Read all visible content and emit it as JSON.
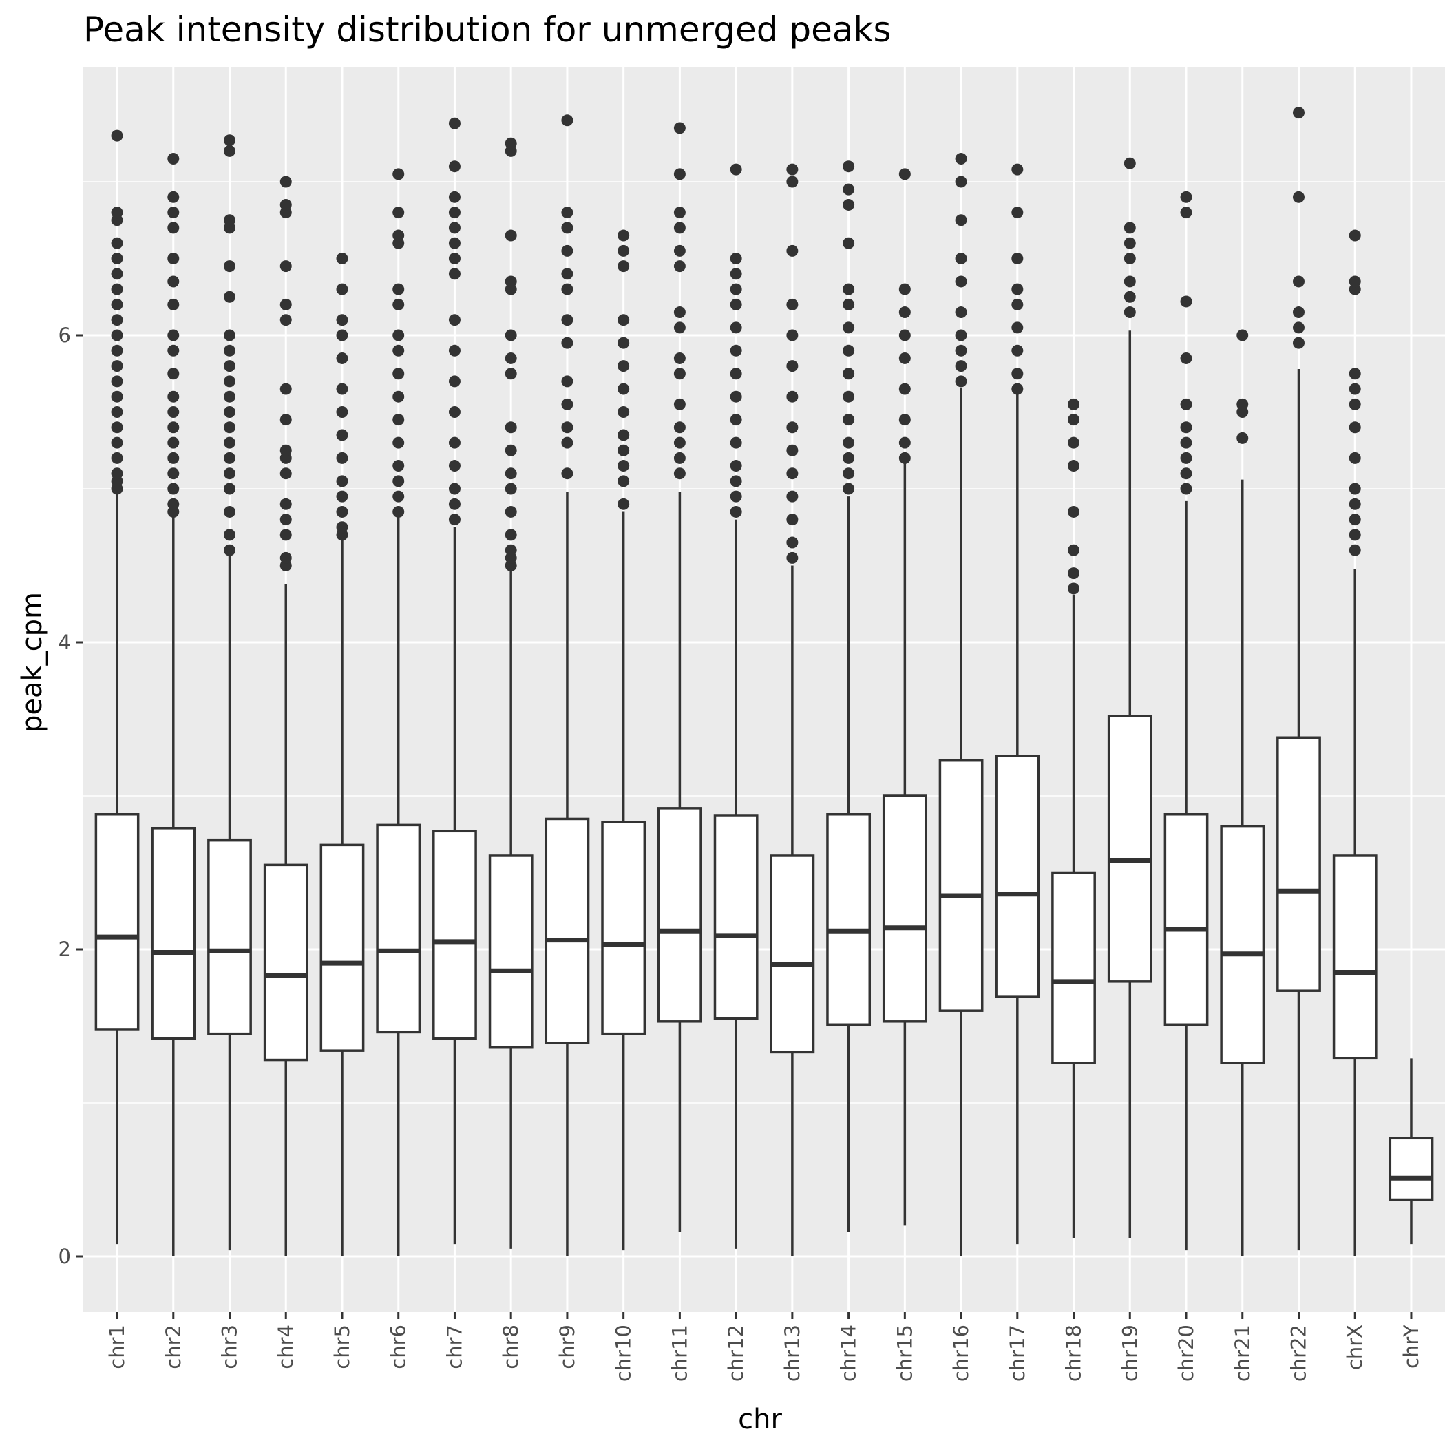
{
  "chart_data": {
    "type": "boxplot",
    "title": "Peak intensity distribution for unmerged peaks",
    "xlabel": "chr",
    "ylabel": "peak_cpm",
    "ylim": [
      -0.37,
      7.6
    ],
    "yticks": [
      0,
      2,
      4,
      6
    ],
    "grid": true,
    "categories": [
      "chr1",
      "chr2",
      "chr3",
      "chr4",
      "chr5",
      "chr6",
      "chr7",
      "chr8",
      "chr9",
      "chr10",
      "chr11",
      "chr12",
      "chr13",
      "chr14",
      "chr15",
      "chr16",
      "chr17",
      "chr18",
      "chr19",
      "chr20",
      "chr21",
      "chr22",
      "chrX",
      "chrY"
    ],
    "boxes": [
      {
        "min": 0.08,
        "q1": 1.48,
        "median": 2.08,
        "q3": 2.88,
        "max": 4.98,
        "outliers": [
          5.0,
          5.05,
          5.1,
          5.2,
          5.3,
          5.4,
          5.5,
          5.6,
          5.7,
          5.8,
          5.9,
          6.0,
          6.1,
          6.2,
          6.3,
          6.4,
          6.5,
          6.6,
          6.75,
          6.8,
          7.3
        ]
      },
      {
        "min": 0.0,
        "q1": 1.42,
        "median": 1.98,
        "q3": 2.79,
        "max": 4.82,
        "outliers": [
          4.85,
          4.9,
          5.0,
          5.1,
          5.2,
          5.3,
          5.4,
          5.5,
          5.6,
          5.75,
          5.9,
          6.0,
          6.2,
          6.35,
          6.5,
          6.7,
          6.8,
          6.9,
          7.15
        ]
      },
      {
        "min": 0.04,
        "q1": 1.45,
        "median": 1.99,
        "q3": 2.71,
        "max": 4.6,
        "outliers": [
          4.6,
          4.7,
          4.85,
          5.0,
          5.1,
          5.2,
          5.3,
          5.4,
          5.5,
          5.6,
          5.7,
          5.8,
          5.9,
          6.0,
          6.25,
          6.45,
          6.7,
          6.75,
          7.2,
          7.27
        ]
      },
      {
        "min": 0.0,
        "q1": 1.28,
        "median": 1.83,
        "q3": 2.55,
        "max": 4.38,
        "outliers": [
          4.5,
          4.55,
          4.7,
          4.8,
          4.9,
          5.1,
          5.2,
          5.25,
          5.45,
          5.65,
          6.1,
          6.2,
          6.45,
          6.8,
          6.85,
          7.0
        ]
      },
      {
        "min": 0.0,
        "q1": 1.34,
        "median": 1.91,
        "q3": 2.68,
        "max": 4.67,
        "outliers": [
          4.7,
          4.75,
          4.85,
          4.95,
          5.05,
          5.2,
          5.35,
          5.5,
          5.65,
          5.85,
          6.0,
          6.1,
          6.3,
          6.5
        ]
      },
      {
        "min": 0.0,
        "q1": 1.46,
        "median": 1.99,
        "q3": 2.81,
        "max": 4.82,
        "outliers": [
          4.85,
          4.95,
          5.05,
          5.15,
          5.3,
          5.45,
          5.6,
          5.75,
          5.9,
          6.0,
          6.2,
          6.3,
          6.6,
          6.65,
          6.8,
          7.05
        ]
      },
      {
        "min": 0.08,
        "q1": 1.42,
        "median": 2.05,
        "q3": 2.77,
        "max": 4.75,
        "outliers": [
          4.8,
          4.9,
          5.0,
          5.15,
          5.3,
          5.5,
          5.7,
          5.9,
          6.1,
          6.4,
          6.5,
          6.6,
          6.7,
          6.8,
          6.9,
          7.1,
          7.38
        ]
      },
      {
        "min": 0.05,
        "q1": 1.36,
        "median": 1.86,
        "q3": 2.61,
        "max": 4.5,
        "outliers": [
          4.5,
          4.55,
          4.6,
          4.7,
          4.85,
          5.0,
          5.1,
          5.25,
          5.4,
          5.75,
          5.85,
          6.0,
          6.3,
          6.35,
          6.65,
          7.2,
          7.25
        ]
      },
      {
        "min": 0.0,
        "q1": 1.39,
        "median": 2.06,
        "q3": 2.85,
        "max": 4.98,
        "outliers": [
          5.1,
          5.3,
          5.4,
          5.55,
          5.7,
          5.95,
          6.1,
          6.3,
          6.4,
          6.55,
          6.7,
          6.8,
          7.4
        ]
      },
      {
        "min": 0.04,
        "q1": 1.45,
        "median": 2.03,
        "q3": 2.83,
        "max": 4.85,
        "outliers": [
          4.9,
          5.05,
          5.15,
          5.25,
          5.35,
          5.5,
          5.65,
          5.8,
          5.95,
          6.1,
          6.45,
          6.55,
          6.65
        ]
      },
      {
        "min": 0.16,
        "q1": 1.53,
        "median": 2.12,
        "q3": 2.92,
        "max": 4.98,
        "outliers": [
          5.1,
          5.2,
          5.3,
          5.4,
          5.55,
          5.75,
          5.85,
          6.05,
          6.15,
          6.45,
          6.55,
          6.7,
          6.8,
          7.05,
          7.35
        ]
      },
      {
        "min": 0.05,
        "q1": 1.55,
        "median": 2.09,
        "q3": 2.87,
        "max": 4.8,
        "outliers": [
          4.85,
          4.95,
          5.05,
          5.15,
          5.3,
          5.45,
          5.6,
          5.75,
          5.9,
          6.05,
          6.2,
          6.3,
          6.4,
          6.5,
          7.08
        ]
      },
      {
        "min": 0.0,
        "q1": 1.33,
        "median": 1.9,
        "q3": 2.61,
        "max": 4.5,
        "outliers": [
          4.55,
          4.65,
          4.8,
          4.95,
          5.1,
          5.25,
          5.4,
          5.6,
          5.8,
          6.0,
          6.2,
          6.55,
          7.0,
          7.08
        ]
      },
      {
        "min": 0.16,
        "q1": 1.51,
        "median": 2.12,
        "q3": 2.88,
        "max": 4.95,
        "outliers": [
          5.0,
          5.1,
          5.2,
          5.3,
          5.45,
          5.6,
          5.75,
          5.9,
          6.05,
          6.2,
          6.3,
          6.6,
          6.85,
          6.95,
          7.1
        ]
      },
      {
        "min": 0.2,
        "q1": 1.53,
        "median": 2.14,
        "q3": 3.0,
        "max": 5.17,
        "outliers": [
          5.2,
          5.3,
          5.45,
          5.65,
          5.85,
          6.0,
          6.15,
          6.3,
          7.05
        ]
      },
      {
        "min": 0.0,
        "q1": 1.6,
        "median": 2.35,
        "q3": 3.23,
        "max": 5.66,
        "outliers": [
          5.7,
          5.8,
          5.9,
          6.0,
          6.15,
          6.35,
          6.5,
          6.75,
          7.0,
          7.15
        ]
      },
      {
        "min": 0.08,
        "q1": 1.69,
        "median": 2.36,
        "q3": 3.26,
        "max": 5.63,
        "outliers": [
          5.65,
          5.75,
          5.9,
          6.05,
          6.2,
          6.3,
          6.5,
          6.8,
          7.08
        ]
      },
      {
        "min": 0.12,
        "q1": 1.26,
        "median": 1.79,
        "q3": 2.5,
        "max": 4.31,
        "outliers": [
          4.35,
          4.45,
          4.6,
          4.85,
          5.15,
          5.3,
          5.45,
          5.55
        ]
      },
      {
        "min": 0.12,
        "q1": 1.79,
        "median": 2.58,
        "q3": 3.52,
        "max": 6.03,
        "outliers": [
          6.15,
          6.25,
          6.35,
          6.5,
          6.6,
          6.7,
          7.12
        ]
      },
      {
        "min": 0.04,
        "q1": 1.51,
        "median": 2.13,
        "q3": 2.88,
        "max": 4.92,
        "outliers": [
          5.0,
          5.1,
          5.2,
          5.3,
          5.4,
          5.55,
          5.85,
          6.22,
          6.8,
          6.9
        ]
      },
      {
        "min": 0.0,
        "q1": 1.26,
        "median": 1.97,
        "q3": 2.8,
        "max": 5.06,
        "outliers": [
          5.33,
          5.5,
          5.55,
          6.0
        ]
      },
      {
        "min": 0.04,
        "q1": 1.73,
        "median": 2.38,
        "q3": 3.38,
        "max": 5.78,
        "outliers": [
          5.95,
          6.05,
          6.15,
          6.35,
          6.9,
          7.45
        ]
      },
      {
        "min": 0.0,
        "q1": 1.29,
        "median": 1.85,
        "q3": 2.61,
        "max": 4.48,
        "outliers": [
          4.6,
          4.7,
          4.8,
          4.9,
          5.0,
          5.2,
          5.4,
          5.55,
          5.65,
          5.75,
          6.3,
          6.35,
          6.65
        ]
      },
      {
        "min": 0.08,
        "q1": 0.37,
        "median": 0.51,
        "q3": 0.77,
        "max": 1.29,
        "outliers": []
      }
    ],
    "colors": {
      "panel_background": "#ebebeb",
      "grid_major": "#ffffff",
      "box_fill": "#ffffff",
      "box_stroke": "#333333",
      "outlier": "#333333",
      "tick_label": "#4d4d4d",
      "tick_mark": "#333333"
    }
  }
}
